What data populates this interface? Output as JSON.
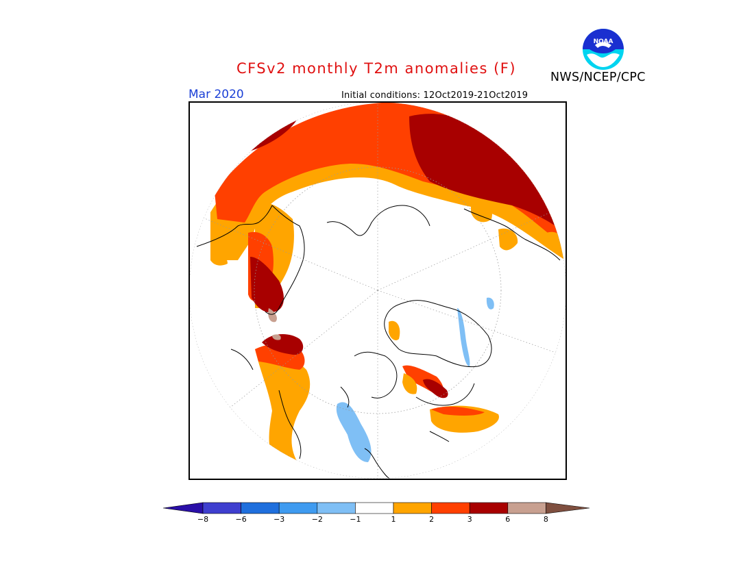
{
  "title": "CFSv2 monthly T2m anomalies (F)",
  "agency": "NWS/NCEP/CPC",
  "logo_text": "NOAA",
  "period": "Mar 2020",
  "initial_conditions": "Initial conditions: 12Oct2019-21Oct2019",
  "colorbar": {
    "labels": [
      "−8",
      "−6",
      "−3",
      "−2",
      "−1",
      "1",
      "2",
      "3",
      "6",
      "8"
    ],
    "colors": [
      "#2a0fa8",
      "#3f3fcf",
      "#1f6fdd",
      "#3f9bf0",
      "#7fbff5",
      "#ffffff",
      "#ffa500",
      "#ff4000",
      "#a80000",
      "#c8a090",
      "#7f4f3f"
    ]
  }
}
